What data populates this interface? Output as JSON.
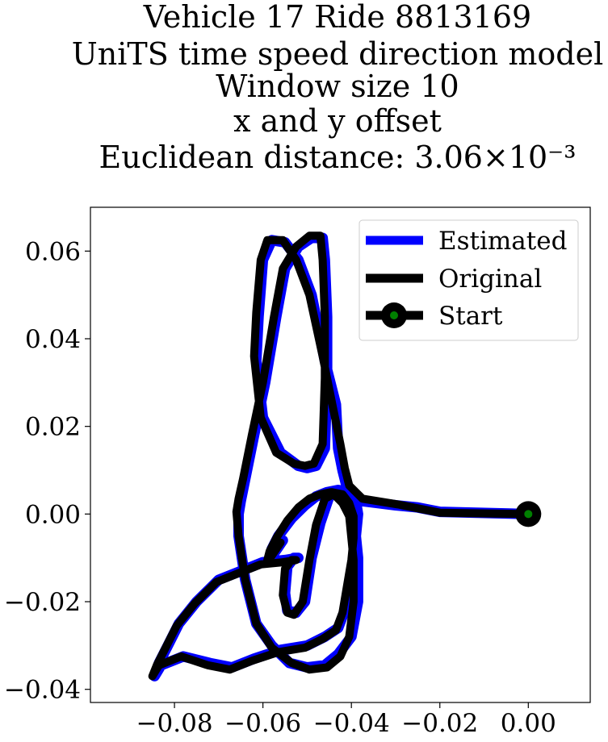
{
  "chart_data": {
    "type": "line",
    "title_lines": [
      "Vehicle 17 Ride 8813169",
      "UniTS time speed direction model",
      "Window size 10",
      "x and y offset",
      "Euclidean distance: 3.06×10⁻³"
    ],
    "xlabel": "",
    "ylabel": "",
    "xlim": [
      -0.099,
      0.014
    ],
    "ylim": [
      -0.043,
      0.07
    ],
    "x_ticks": [
      -0.08,
      -0.06,
      -0.04,
      -0.02,
      0.0
    ],
    "x_tick_labels": [
      "−0.08",
      "−0.06",
      "−0.04",
      "−0.02",
      "0.00"
    ],
    "y_ticks": [
      -0.04,
      -0.02,
      0.0,
      0.02,
      0.04,
      0.06
    ],
    "y_tick_labels": [
      "−0.04",
      "−0.02",
      "0.00",
      "0.02",
      "0.04",
      "0.06"
    ],
    "grid": false,
    "legend_position": "upper right",
    "colors": {
      "estimated": "#0000ff",
      "original": "#000000",
      "start_ring": "#000000",
      "start_fill": "#008000"
    },
    "series": [
      {
        "name": "Estimated",
        "x": [
          0.0,
          -0.02,
          -0.025,
          -0.03,
          -0.038,
          -0.041,
          -0.042,
          -0.043,
          -0.0435,
          -0.046,
          -0.049,
          -0.052,
          -0.055,
          -0.058,
          -0.06,
          -0.061,
          -0.0615,
          -0.06,
          -0.056,
          -0.052,
          -0.05,
          -0.048,
          -0.046,
          -0.0455,
          -0.0455,
          -0.046,
          -0.0465,
          -0.049,
          -0.052,
          -0.055,
          -0.057,
          -0.0595,
          -0.062,
          -0.064,
          -0.065,
          -0.0655,
          -0.0655,
          -0.064,
          -0.0615,
          -0.058,
          -0.054,
          -0.05,
          -0.046,
          -0.043,
          -0.04,
          -0.0385,
          -0.0385,
          -0.0395,
          -0.041,
          -0.043,
          -0.045,
          -0.047,
          -0.049,
          -0.0505,
          -0.0525,
          -0.0545,
          -0.055,
          -0.0545,
          -0.053,
          -0.052,
          -0.055,
          -0.06,
          -0.065,
          -0.07,
          -0.075,
          -0.079,
          -0.0815,
          -0.0835,
          -0.0845,
          -0.083,
          -0.078,
          -0.072,
          -0.067,
          -0.062,
          -0.056,
          -0.05,
          -0.046,
          -0.043,
          -0.0415,
          -0.0405,
          -0.0395,
          -0.039,
          -0.0385,
          -0.039,
          -0.0405,
          -0.043,
          -0.0455,
          -0.048,
          -0.0505,
          -0.0535,
          -0.0565,
          -0.058,
          -0.0585,
          -0.0575,
          -0.0555
        ],
        "y": [
          0.0,
          0.0005,
          0.0015,
          0.002,
          0.003,
          0.006,
          0.01,
          0.015,
          0.025,
          0.035,
          0.05,
          0.058,
          0.062,
          0.0625,
          0.058,
          0.045,
          0.035,
          0.022,
          0.014,
          0.011,
          0.0105,
          0.011,
          0.015,
          0.03,
          0.045,
          0.058,
          0.063,
          0.063,
          0.061,
          0.056,
          0.045,
          0.03,
          0.018,
          0.008,
          0.003,
          0.0,
          -0.005,
          -0.015,
          -0.025,
          -0.03,
          -0.034,
          -0.035,
          -0.0345,
          -0.032,
          -0.028,
          -0.02,
          -0.01,
          0.0,
          0.003,
          0.005,
          0.004,
          -0.002,
          -0.01,
          -0.02,
          -0.0225,
          -0.022,
          -0.018,
          -0.012,
          -0.01,
          -0.01,
          -0.0105,
          -0.011,
          -0.013,
          -0.015,
          -0.02,
          -0.025,
          -0.03,
          -0.034,
          -0.037,
          -0.0345,
          -0.0325,
          -0.034,
          -0.035,
          -0.033,
          -0.031,
          -0.03,
          -0.028,
          -0.026,
          -0.022,
          -0.016,
          -0.01,
          -0.005,
          0.0,
          0.003,
          0.005,
          0.0055,
          0.005,
          0.004,
          0.002,
          -0.001,
          -0.005,
          -0.008,
          -0.01,
          -0.009,
          -0.006
        ]
      },
      {
        "name": "Original",
        "x": [
          0.0,
          -0.02,
          -0.0245,
          -0.0295,
          -0.0375,
          -0.0405,
          -0.0415,
          -0.0425,
          -0.0445,
          -0.0465,
          -0.0495,
          -0.0525,
          -0.0555,
          -0.059,
          -0.0605,
          -0.0615,
          -0.062,
          -0.0605,
          -0.057,
          -0.053,
          -0.0505,
          -0.0485,
          -0.0465,
          -0.046,
          -0.046,
          -0.0465,
          -0.047,
          -0.0495,
          -0.0525,
          -0.0555,
          -0.0575,
          -0.06,
          -0.0625,
          -0.0645,
          -0.0655,
          -0.066,
          -0.0655,
          -0.064,
          -0.0615,
          -0.058,
          -0.0535,
          -0.0495,
          -0.0455,
          -0.0425,
          -0.0405,
          -0.0395,
          -0.0395,
          -0.0405,
          -0.042,
          -0.044,
          -0.046,
          -0.048,
          -0.0495,
          -0.051,
          -0.053,
          -0.0545,
          -0.0555,
          -0.055,
          -0.0535,
          -0.0525,
          -0.0555,
          -0.0605,
          -0.0655,
          -0.0705,
          -0.0755,
          -0.0795,
          -0.082,
          -0.084,
          -0.085,
          -0.0835,
          -0.0785,
          -0.0725,
          -0.0675,
          -0.0625,
          -0.0565,
          -0.0505,
          -0.0465,
          -0.0435,
          -0.042,
          -0.041,
          -0.04,
          -0.0395,
          -0.0395,
          -0.0405,
          -0.042,
          -0.0445,
          -0.047,
          -0.0495,
          -0.052,
          -0.0545,
          -0.057,
          -0.0585,
          -0.059,
          -0.058,
          -0.056
        ],
        "y": [
          0.0,
          0.0003,
          0.0012,
          0.0022,
          0.0035,
          0.0065,
          0.0105,
          0.016,
          0.026,
          0.036,
          0.05,
          0.058,
          0.0625,
          0.0625,
          0.058,
          0.046,
          0.036,
          0.022,
          0.014,
          0.0115,
          0.011,
          0.0115,
          0.016,
          0.031,
          0.045,
          0.058,
          0.0635,
          0.0635,
          0.061,
          0.056,
          0.045,
          0.03,
          0.018,
          0.008,
          0.0035,
          0.0005,
          -0.005,
          -0.015,
          -0.025,
          -0.0305,
          -0.034,
          -0.0355,
          -0.035,
          -0.0325,
          -0.028,
          -0.02,
          -0.0105,
          -0.0005,
          0.0025,
          0.0045,
          0.0035,
          -0.0025,
          -0.0105,
          -0.02,
          -0.023,
          -0.0225,
          -0.0185,
          -0.0125,
          -0.0105,
          -0.0105,
          -0.011,
          -0.0115,
          -0.0135,
          -0.0155,
          -0.0205,
          -0.0255,
          -0.0305,
          -0.0345,
          -0.037,
          -0.0345,
          -0.0325,
          -0.0345,
          -0.0355,
          -0.0335,
          -0.0315,
          -0.0305,
          -0.0285,
          -0.0265,
          -0.0225,
          -0.0165,
          -0.0105,
          -0.0055,
          -0.0005,
          0.0025,
          0.0045,
          0.005,
          0.0045,
          0.0035,
          0.0015,
          -0.0015,
          -0.0055,
          -0.0085,
          -0.0105,
          -0.0095,
          -0.0065
        ]
      }
    ],
    "start": {
      "label": "Start",
      "x": 0.0,
      "y": 0.0
    },
    "legend": [
      {
        "label": "Estimated",
        "kind": "line",
        "color": "#0000ff"
      },
      {
        "label": "Original",
        "kind": "line",
        "color": "#000000"
      },
      {
        "label": "Start",
        "kind": "line-marker",
        "color": "#000000",
        "marker_fill": "#008000"
      }
    ]
  }
}
